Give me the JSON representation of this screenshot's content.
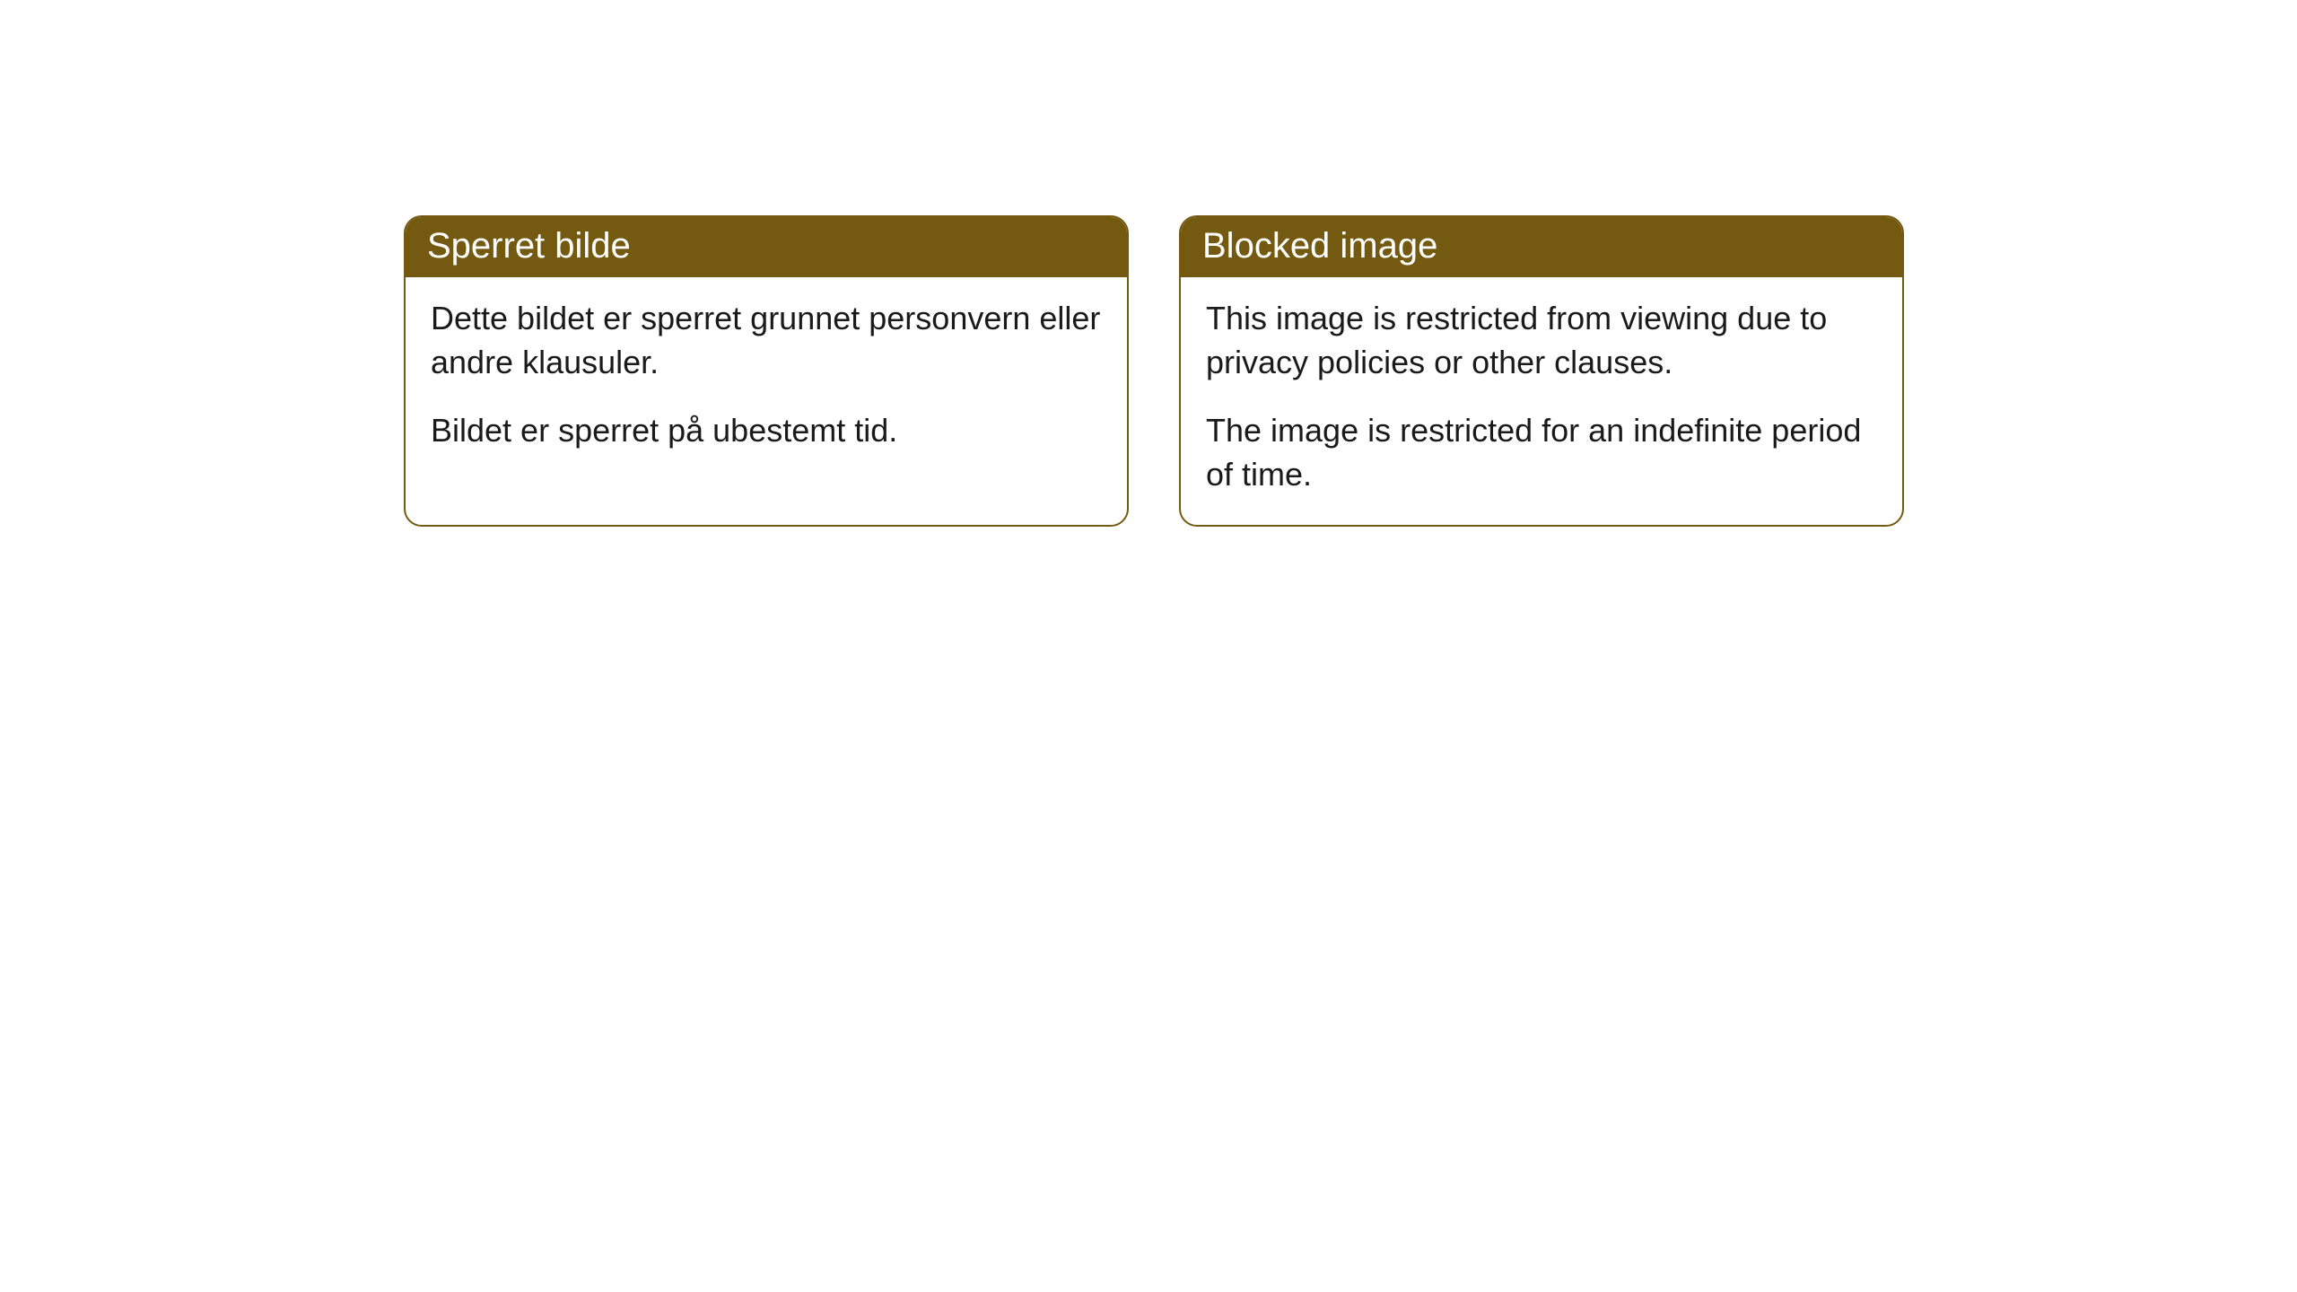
{
  "cards": {
    "left": {
      "title": "Sperret bilde",
      "paragraph1": "Dette bildet er sperret grunnet personvern eller andre klausuler.",
      "paragraph2": "Bildet er sperret på ubestemt tid."
    },
    "right": {
      "title": "Blocked image",
      "paragraph1": "This image is restricted from viewing due to privacy policies or other clauses.",
      "paragraph2": "The image is restricted for an indefinite period of time."
    }
  },
  "styling": {
    "header_background": "#745a10",
    "header_text_color": "#ffffff",
    "border_color": "#745a10",
    "body_background": "#ffffff",
    "body_text_color": "#1a1a1a",
    "border_radius": 20,
    "title_fontsize": 40,
    "body_fontsize": 36
  }
}
